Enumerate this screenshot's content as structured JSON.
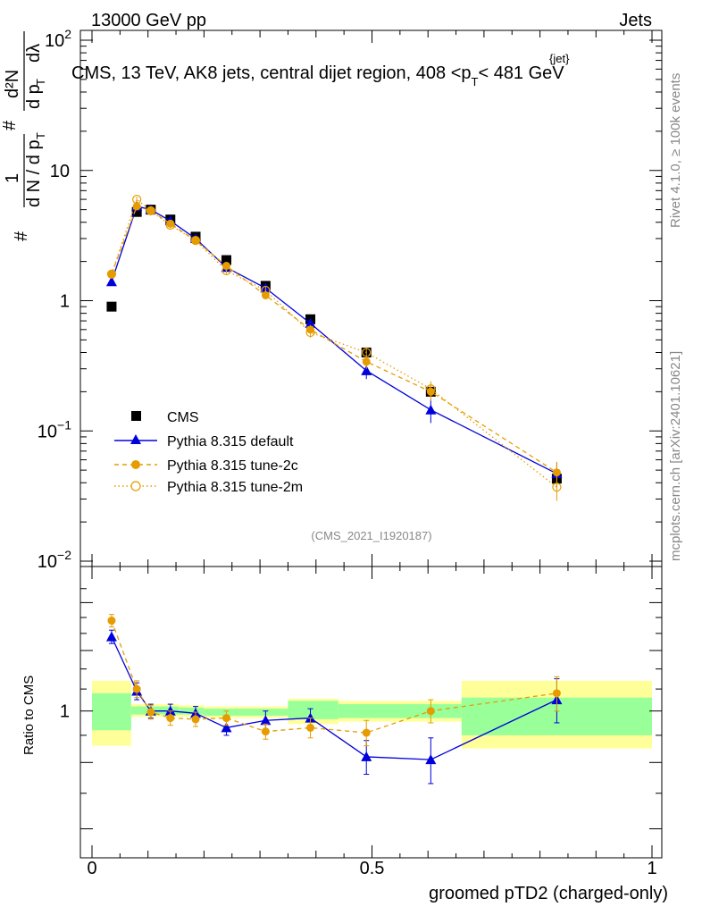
{
  "header": {
    "energy_label": "13000 GeV pp",
    "category_label": "Jets"
  },
  "side_labels": {
    "rivet": "Rivet 4.1.0, ≥ 100k events",
    "mcplots": "mcplots.cern.ch [arXiv:2401.10621]"
  },
  "watermark": "(CMS_2021_I1920187)",
  "colors": {
    "cms": "#000000",
    "default": "#0000dd",
    "tune2c": "#e69c00",
    "tune2m": "#e69c00",
    "band_inner": "#99ff99",
    "band_outer": "#ffff99"
  },
  "chart_data": [
    {
      "type": "scatter",
      "yscale": "log",
      "title_parts": {
        "prefix": "CMS, 13 TeV, AK8 jets, central dijet region, 408 <p",
        "sub": "T",
        "sup": "{jet}",
        "suffix": "< 481 GeV"
      },
      "ylabel": "# 1 / dN / dp_T  # d²N / dp_T dλ",
      "ylabel_parts": {
        "hash1": "#",
        "one": "1",
        "denom": "d N / d p",
        "sub": "T",
        "hash2": "#",
        "num2": "d²N",
        "denom2": "d p",
        "sub2": "T",
        "dlambda": "dλ"
      },
      "xlim": [
        0,
        1
      ],
      "ylim": [
        0.01,
        100
      ],
      "y_ticks": [
        {
          "value": 0.01,
          "base": "10",
          "exp": "−2"
        },
        {
          "value": 0.1,
          "base": "10",
          "exp": "−1"
        },
        {
          "value": 1,
          "base": "1",
          "exp": ""
        },
        {
          "value": 10,
          "base": "10",
          "exp": ""
        },
        {
          "value": 100,
          "base": "10",
          "exp": "2"
        }
      ],
      "x": [
        0.035,
        0.08,
        0.105,
        0.14,
        0.185,
        0.24,
        0.31,
        0.39,
        0.49,
        0.605,
        0.83
      ],
      "series": [
        {
          "name": "CMS",
          "style": "square",
          "values": [
            0.9,
            4.8,
            5.0,
            4.2,
            3.1,
            2.05,
            1.3,
            0.72,
            0.4,
            0.2,
            0.043
          ]
        },
        {
          "name": "Pythia 8.315 default",
          "style": "triangle-line",
          "values": [
            1.4,
            5.3,
            5.0,
            4.1,
            3.0,
            1.8,
            1.25,
            0.67,
            0.29,
            0.145,
            0.047
          ],
          "errors": [
            0.1,
            0.3,
            0.2,
            0.2,
            0.15,
            0.1,
            0.08,
            0.05,
            0.04,
            0.03,
            0.01
          ]
        },
        {
          "name": "Pythia 8.315 tune-2c",
          "style": "circle-dashed",
          "values": [
            1.6,
            5.3,
            4.9,
            3.9,
            2.9,
            1.85,
            1.1,
            0.6,
            0.34,
            0.2,
            0.048
          ],
          "errors": [
            0.1,
            0.3,
            0.2,
            0.2,
            0.15,
            0.1,
            0.08,
            0.05,
            0.04,
            0.03,
            0.01
          ]
        },
        {
          "name": "Pythia 8.315 tune-2m",
          "style": "open-circle-dotted",
          "values": [
            1.6,
            6.0,
            4.9,
            3.8,
            2.9,
            1.7,
            1.2,
            0.57,
            0.4,
            0.21,
            0.037
          ],
          "errors": [
            0.1,
            0.3,
            0.2,
            0.2,
            0.15,
            0.1,
            0.08,
            0.05,
            0.04,
            0.03,
            0.008
          ]
        }
      ],
      "legend_position": "lower-left"
    },
    {
      "type": "scatter",
      "yscale": "log",
      "ylabel": "Ratio to CMS",
      "xlabel": "groomed pTD2 (charged-only)",
      "xlim": [
        0,
        1
      ],
      "ylim": [
        0.55,
        1.8
      ],
      "y_ticks": [
        {
          "value": 1,
          "label": "1"
        }
      ],
      "x_ticks": [
        {
          "value": 0,
          "label": "0"
        },
        {
          "value": 0.5,
          "label": "0.5"
        },
        {
          "value": 1,
          "label": "1"
        }
      ],
      "x": [
        0.035,
        0.08,
        0.105,
        0.14,
        0.185,
        0.24,
        0.31,
        0.39,
        0.49,
        0.605,
        0.83
      ],
      "bands": [
        {
          "x0": 0.0,
          "x1": 0.07,
          "inner": [
            0.92,
            1.08
          ],
          "outer": [
            0.86,
            1.14
          ]
        },
        {
          "x0": 0.07,
          "x1": 0.155,
          "inner": [
            0.985,
            1.02
          ],
          "outer": [
            0.975,
            1.03
          ]
        },
        {
          "x0": 0.155,
          "x1": 0.2,
          "inner": [
            0.985,
            1.015
          ],
          "outer": [
            0.975,
            1.025
          ]
        },
        {
          "x0": 0.2,
          "x1": 0.35,
          "inner": [
            0.98,
            1.01
          ],
          "outer": [
            0.97,
            1.02
          ]
        },
        {
          "x0": 0.35,
          "x1": 0.44,
          "inner": [
            0.965,
            1.045
          ],
          "outer": [
            0.945,
            1.055
          ]
        },
        {
          "x0": 0.44,
          "x1": 0.66,
          "inner": [
            0.97,
            1.03
          ],
          "outer": [
            0.955,
            1.045
          ]
        },
        {
          "x0": 0.66,
          "x1": 1.0,
          "inner": [
            0.9,
            1.06
          ],
          "outer": [
            0.85,
            1.14
          ]
        }
      ],
      "series": [
        {
          "name": "Pythia 8.315 default",
          "style": "triangle-line",
          "values": [
            1.38,
            1.09,
            1.0,
            1.0,
            0.99,
            0.93,
            0.96,
            0.97,
            0.82,
            0.81,
            1.05
          ],
          "errors": [
            0.04,
            0.04,
            0.03,
            0.03,
            0.03,
            0.03,
            0.04,
            0.04,
            0.06,
            0.08,
            0.1
          ]
        },
        {
          "name": "Pythia 8.315 tune-2c",
          "style": "circle-dashed",
          "values": [
            1.48,
            1.1,
            0.995,
            0.97,
            0.965,
            0.97,
            0.915,
            0.93,
            0.91,
            1.0,
            1.08
          ],
          "errors": [
            0.04,
            0.04,
            0.03,
            0.03,
            0.03,
            0.03,
            0.03,
            0.04,
            0.05,
            0.05,
            0.08
          ]
        }
      ]
    }
  ]
}
